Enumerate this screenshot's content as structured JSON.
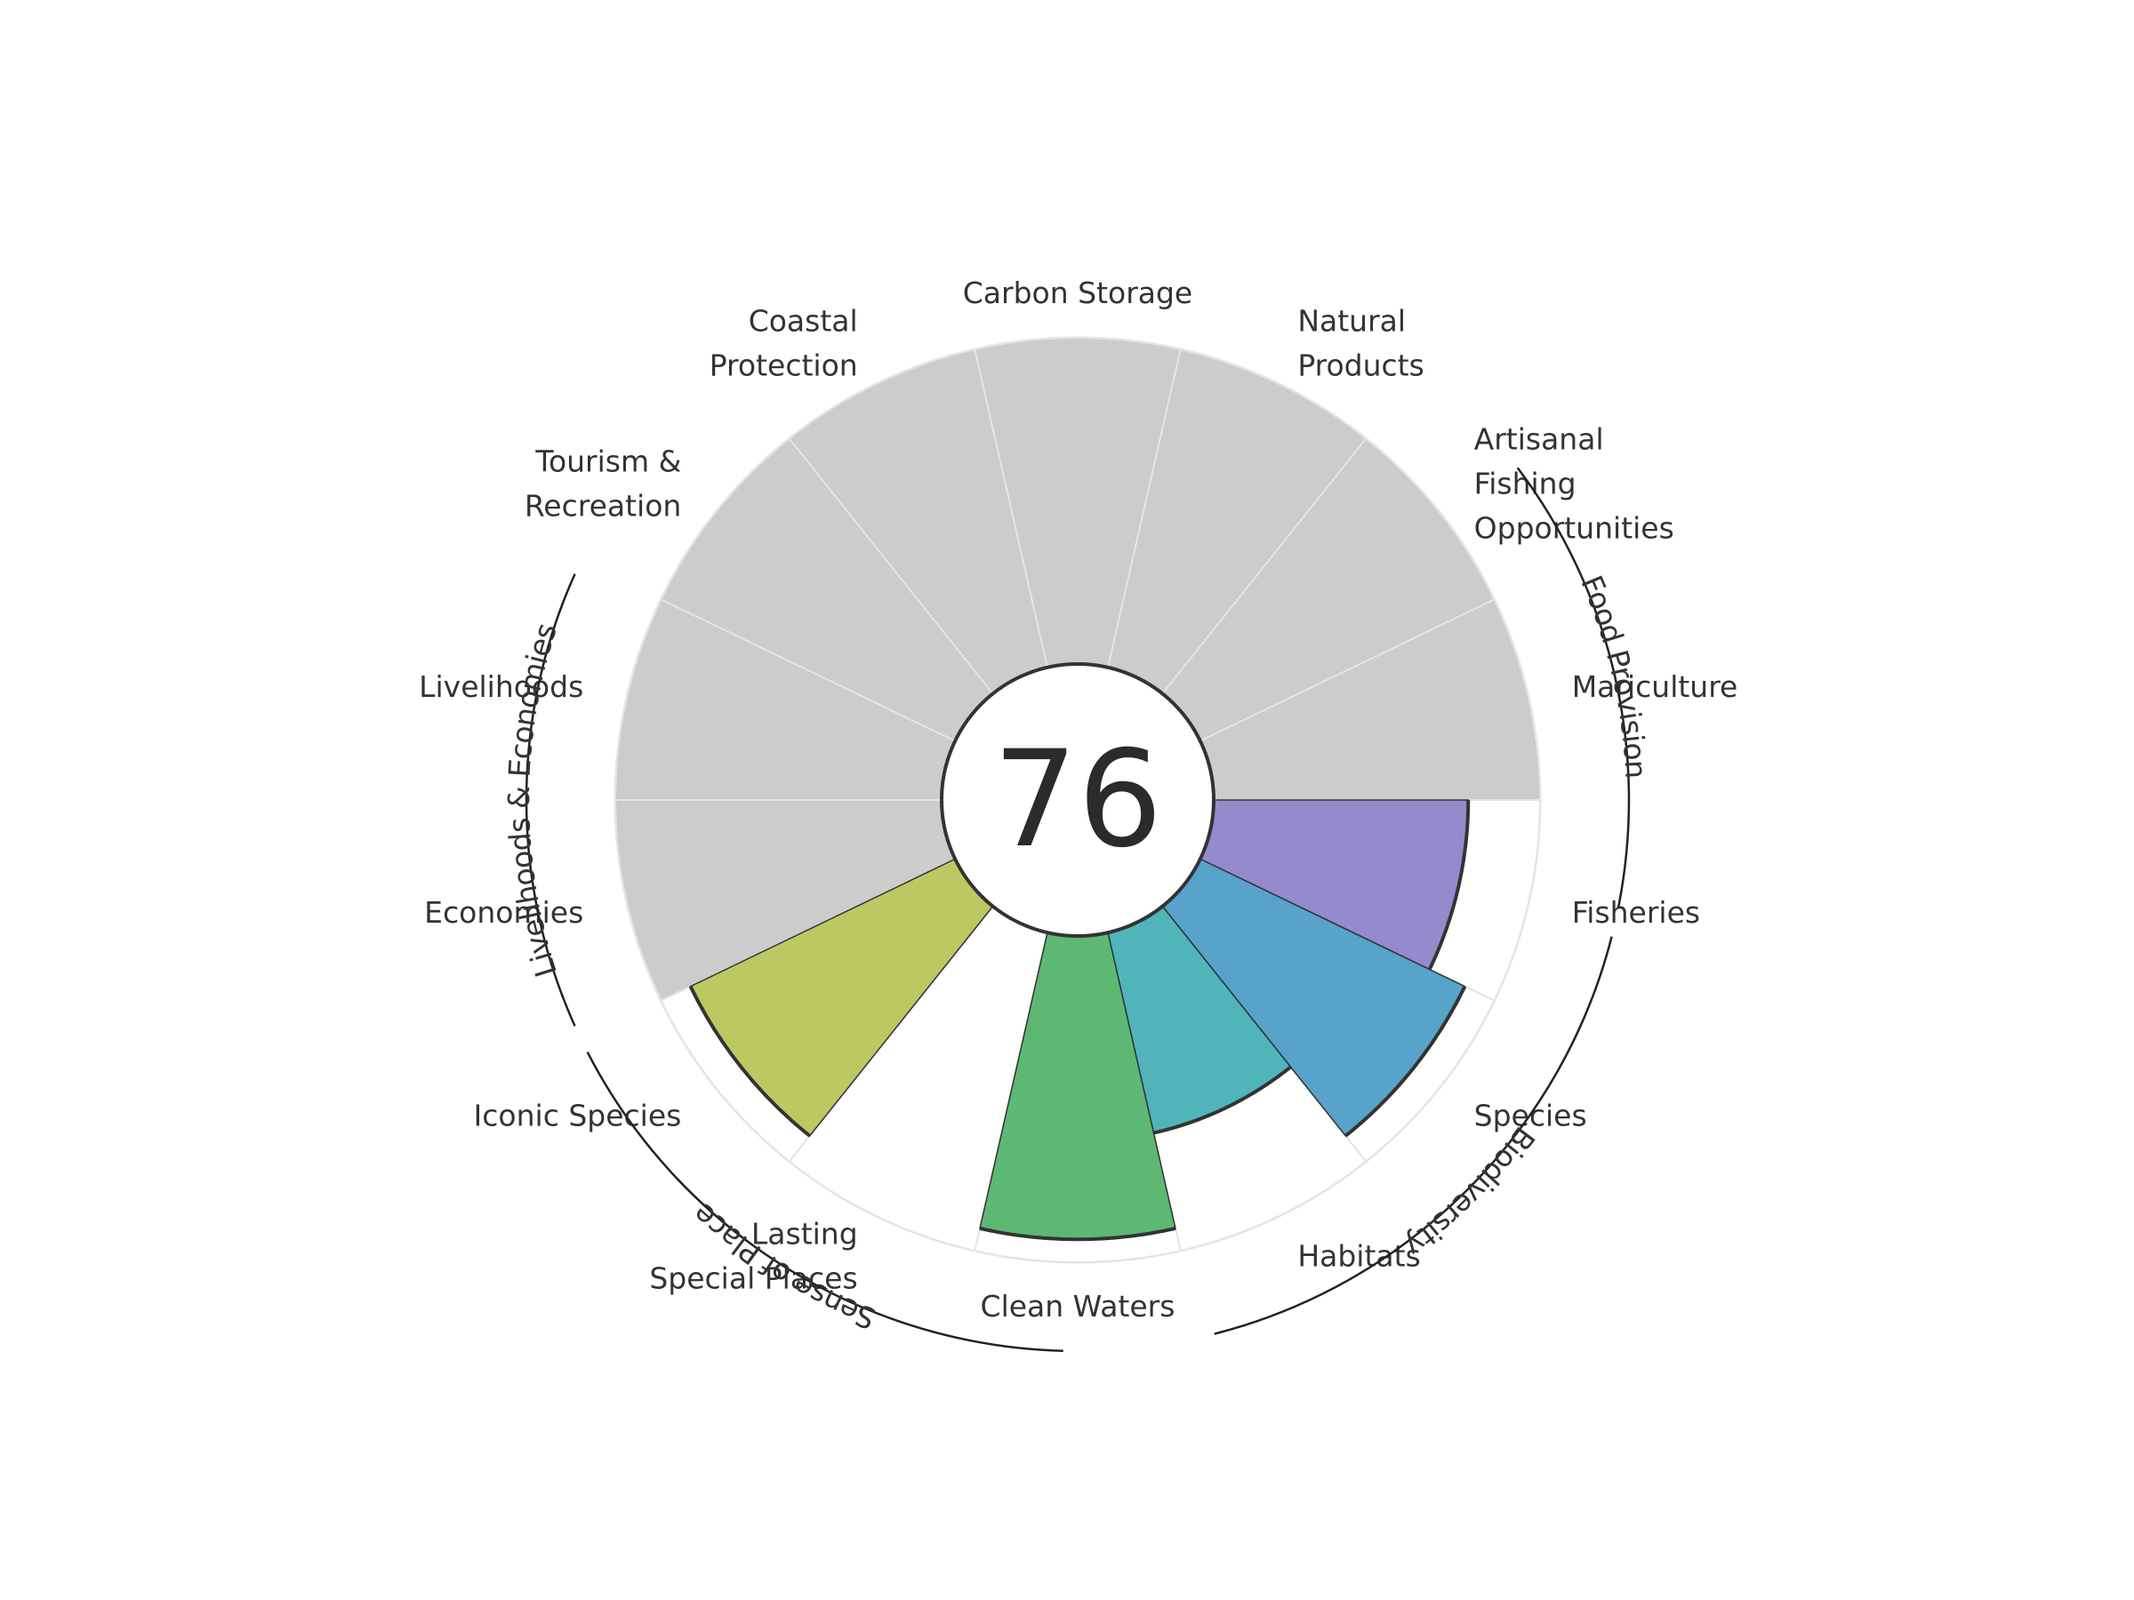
{
  "chart_data": {
    "type": "polar-bar",
    "center_score": "76",
    "max_value": 100,
    "goals": [
      {
        "label": "Fisheries",
        "value": 78,
        "color": "#938bcc"
      },
      {
        "label": "Species",
        "value": 90,
        "color": "#58a3c9"
      },
      {
        "label": "Habitats",
        "value": 63,
        "color": "#4fb5bb"
      },
      {
        "label": "Clean Waters",
        "value": 93,
        "color": "#5db874"
      },
      {
        "label": "Lasting Special Places",
        "value": null,
        "color": "#ffffff"
      },
      {
        "label": "Iconic Species",
        "value": 90,
        "color": "#bdc862"
      },
      {
        "label": "Economies",
        "value": null,
        "color": "#cccccc"
      },
      {
        "label": "Livelihoods",
        "value": null,
        "color": "#cccccc"
      },
      {
        "label": "Tourism & Recreation",
        "value": null,
        "color": "#cccccc"
      },
      {
        "label": "Coastal Protection",
        "value": null,
        "color": "#cccccc"
      },
      {
        "label": "Carbon Storage",
        "value": null,
        "color": "#cccccc"
      },
      {
        "label": "Natural Products",
        "value": null,
        "color": "#cccccc"
      },
      {
        "label": "Artisanal Fishing Opportunities",
        "value": null,
        "color": "#cccccc"
      },
      {
        "label": "Mariculture",
        "value": null,
        "color": "#cccccc"
      }
    ],
    "groups": [
      "Food Provision",
      "Biodiversity",
      "Sense of Place",
      "Livelihoods & Economies"
    ],
    "grid": false,
    "legend": "none"
  }
}
